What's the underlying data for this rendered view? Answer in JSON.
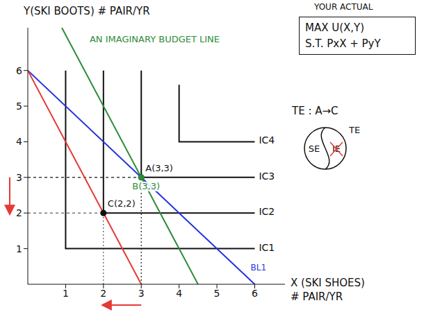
{
  "chart_data": {
    "type": "line",
    "y_label": "Y(SKI BOOTS) # PAIR/YR",
    "x_label": [
      "X (SKI SHOES)",
      "# PAIR/YR"
    ],
    "xlim": [
      0,
      6.8
    ],
    "ylim": [
      0,
      7.2
    ],
    "xticks": [
      1,
      2,
      3,
      4,
      5,
      6
    ],
    "yticks": [
      1,
      2,
      3,
      4,
      5,
      6
    ],
    "series": [
      {
        "name": "IC1",
        "color": "#111111",
        "x": [
          1,
          1,
          6
        ],
        "values": [
          6,
          1,
          1
        ]
      },
      {
        "name": "IC2",
        "color": "#111111",
        "x": [
          2,
          2,
          6
        ],
        "values": [
          6,
          2,
          2
        ]
      },
      {
        "name": "IC3",
        "color": "#111111",
        "x": [
          3,
          3,
          6
        ],
        "values": [
          6,
          3,
          3
        ]
      },
      {
        "name": "IC4",
        "color": "#111111",
        "x": [
          4,
          4,
          6
        ],
        "values": [
          5.6,
          4,
          4
        ]
      },
      {
        "name": "BL1",
        "color": "#2233dd",
        "x": [
          0,
          6
        ],
        "values": [
          6,
          0
        ]
      },
      {
        "color": "#e53935",
        "x": [
          0,
          3
        ],
        "values": [
          6,
          0
        ]
      },
      {
        "color": "#2e8b3a",
        "x": [
          0.9,
          4.5
        ],
        "values": [
          7.2,
          0
        ],
        "annotation": "AN IMAGINARY BUDGET LINE"
      }
    ],
    "points": [
      {
        "label": "A(3,3)",
        "x": 3,
        "y": 3,
        "color": "#111111"
      },
      {
        "label": "B(3,3)",
        "x": 3,
        "y": 3,
        "color": "#2e8b3a"
      },
      {
        "label": "C(2,2)",
        "x": 2,
        "y": 2,
        "color": "#111111"
      }
    ]
  },
  "notes": {
    "header": "YOUR ACTUAL",
    "box": [
      "MAX U(X,Y)",
      "S.T. PxX + PyY"
    ],
    "te": "TE : A→C",
    "circle": {
      "left": "SE",
      "right": "IE",
      "outside": "TE"
    }
  }
}
